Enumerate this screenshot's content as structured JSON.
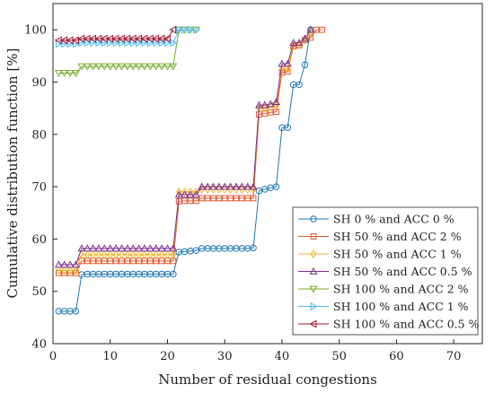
{
  "chart_data": {
    "type": "line",
    "title": "",
    "xlabel": "Number of residual congestions",
    "ylabel": "Cumulative distribution function [%]",
    "xlim": [
      0,
      75
    ],
    "ylim": [
      40,
      105
    ],
    "xticks": [
      "0",
      "10",
      "20",
      "30",
      "40",
      "50",
      "60",
      "70"
    ],
    "yticks": [
      "40",
      "50",
      "60",
      "70",
      "80",
      "90",
      "100"
    ],
    "grid": false,
    "legend_position": "bottom-right",
    "series": [
      {
        "name": "SH 0 % and ACC 0 %",
        "color": "#1f77b4",
        "marker": "circle",
        "x": [
          1,
          2,
          3,
          4,
          5,
          6,
          7,
          8,
          9,
          10,
          11,
          12,
          13,
          14,
          15,
          16,
          17,
          18,
          19,
          20,
          21,
          22,
          23,
          24,
          25,
          26,
          27,
          28,
          29,
          30,
          31,
          32,
          33,
          34,
          35,
          36,
          37,
          38,
          39,
          40,
          41,
          42,
          43,
          44,
          45
        ],
        "y": [
          46.2,
          46.2,
          46.2,
          46.2,
          53.2,
          53.3,
          53.3,
          53.3,
          53.3,
          53.3,
          53.3,
          53.3,
          53.3,
          53.3,
          53.3,
          53.3,
          53.3,
          53.3,
          53.3,
          53.3,
          53.3,
          57.5,
          57.6,
          57.7,
          57.8,
          58.2,
          58.2,
          58.2,
          58.2,
          58.2,
          58.2,
          58.2,
          58.2,
          58.2,
          58.3,
          69.2,
          69.5,
          69.8,
          70.0,
          81.3,
          81.3,
          89.5,
          89.5,
          93.3,
          100
        ]
      },
      {
        "name": "SH 50 % and ACC 2 %",
        "color": "#e2572b",
        "marker": "square",
        "x": [
          1,
          2,
          3,
          4,
          5,
          6,
          7,
          8,
          9,
          10,
          11,
          12,
          13,
          14,
          15,
          16,
          17,
          18,
          19,
          20,
          21,
          22,
          23,
          24,
          25,
          26,
          27,
          28,
          29,
          30,
          31,
          32,
          33,
          34,
          35,
          36,
          37,
          38,
          39,
          40,
          41,
          42,
          43,
          44,
          45,
          46,
          47
        ],
        "y": [
          53.5,
          53.5,
          53.5,
          53.5,
          55.8,
          55.8,
          55.8,
          55.8,
          55.8,
          55.8,
          55.8,
          55.8,
          55.8,
          55.8,
          55.8,
          55.8,
          55.8,
          55.8,
          55.8,
          55.8,
          55.8,
          67.2,
          67.3,
          67.3,
          67.3,
          67.8,
          67.8,
          67.8,
          67.8,
          67.8,
          67.8,
          67.8,
          67.8,
          67.8,
          67.8,
          83.8,
          84.0,
          84.2,
          84.3,
          91.8,
          92.0,
          96.8,
          97.0,
          98.0,
          98.5,
          100,
          100
        ]
      },
      {
        "name": "SH 50 % and ACC 1 %",
        "color": "#f0b323",
        "marker": "diamond",
        "x": [
          1,
          2,
          3,
          4,
          5,
          6,
          7,
          8,
          9,
          10,
          11,
          12,
          13,
          14,
          15,
          16,
          17,
          18,
          19,
          20,
          21,
          22,
          23,
          24,
          25,
          26,
          27,
          28,
          29,
          30,
          31,
          32,
          33,
          34,
          35,
          36,
          37,
          38,
          39,
          40,
          41,
          42,
          43,
          44,
          45
        ],
        "y": [
          54.0,
          54.0,
          54.0,
          54.0,
          57.0,
          57.0,
          57.0,
          57.0,
          57.0,
          57.0,
          57.0,
          57.0,
          57.0,
          57.0,
          57.0,
          57.0,
          57.0,
          57.0,
          57.0,
          57.0,
          57.0,
          69.0,
          69.0,
          69.0,
          69.0,
          69.5,
          69.5,
          69.5,
          69.5,
          69.5,
          69.5,
          69.5,
          69.5,
          69.5,
          69.5,
          85.0,
          85.0,
          85.2,
          85.5,
          92.5,
          92.5,
          97.0,
          97.2,
          98.0,
          99.5
        ]
      },
      {
        "name": "SH 50 % and ACC 0.5 %",
        "color": "#7e2f8e",
        "marker": "triangle-up",
        "x": [
          1,
          2,
          3,
          4,
          5,
          6,
          7,
          8,
          9,
          10,
          11,
          12,
          13,
          14,
          15,
          16,
          17,
          18,
          19,
          20,
          21,
          22,
          23,
          24,
          25,
          26,
          27,
          28,
          29,
          30,
          31,
          32,
          33,
          34,
          35,
          36,
          37,
          38,
          39,
          40,
          41,
          42,
          43,
          44,
          45
        ],
        "y": [
          55.1,
          55.1,
          55.1,
          55.1,
          58.2,
          58.2,
          58.2,
          58.2,
          58.2,
          58.2,
          58.2,
          58.2,
          58.2,
          58.2,
          58.2,
          58.2,
          58.2,
          58.2,
          58.2,
          58.2,
          58.2,
          68.5,
          68.5,
          68.5,
          68.5,
          70.0,
          70.0,
          70.0,
          70.0,
          70.0,
          70.0,
          70.0,
          70.0,
          70.0,
          70.0,
          85.6,
          85.6,
          85.8,
          86.2,
          93.5,
          93.5,
          97.5,
          97.5,
          98.3,
          100
        ]
      },
      {
        "name": "SH 100 % and ACC 2 %",
        "color": "#77ac30",
        "marker": "triangle-down",
        "x": [
          1,
          2,
          3,
          4,
          5,
          6,
          7,
          8,
          9,
          10,
          11,
          12,
          13,
          14,
          15,
          16,
          17,
          18,
          19,
          20,
          21,
          22,
          23,
          24,
          25
        ],
        "y": [
          91.7,
          91.7,
          91.7,
          91.7,
          93.0,
          93.0,
          93.0,
          93.0,
          93.0,
          93.0,
          93.0,
          93.0,
          93.0,
          93.0,
          93.0,
          93.0,
          93.0,
          93.0,
          93.0,
          93.0,
          93.0,
          100,
          100,
          100,
          100
        ]
      },
      {
        "name": "SH 100 % and ACC 1 %",
        "color": "#4dbeee",
        "marker": "triangle-right",
        "x": [
          1,
          2,
          3,
          4,
          5,
          6,
          7,
          8,
          9,
          10,
          11,
          12,
          13,
          14,
          15,
          16,
          17,
          18,
          19,
          20,
          21,
          22,
          23,
          24,
          25
        ],
        "y": [
          97.3,
          97.3,
          97.3,
          97.3,
          97.5,
          97.5,
          97.5,
          97.5,
          97.5,
          97.5,
          97.5,
          97.5,
          97.5,
          97.5,
          97.5,
          97.5,
          97.5,
          97.5,
          97.5,
          97.5,
          97.5,
          100,
          100,
          100,
          100
        ]
      },
      {
        "name": "SH 100 % and ACC 0.5 %",
        "color": "#a2142f",
        "marker": "triangle-left",
        "x": [
          1,
          2,
          3,
          4,
          5,
          6,
          7,
          8,
          9,
          10,
          11,
          12,
          13,
          14,
          15,
          16,
          17,
          18,
          19,
          20,
          21
        ],
        "y": [
          98.0,
          98.0,
          98.0,
          98.0,
          98.3,
          98.3,
          98.3,
          98.3,
          98.3,
          98.3,
          98.3,
          98.3,
          98.3,
          98.3,
          98.3,
          98.3,
          98.3,
          98.3,
          98.3,
          98.3,
          100
        ]
      }
    ]
  }
}
